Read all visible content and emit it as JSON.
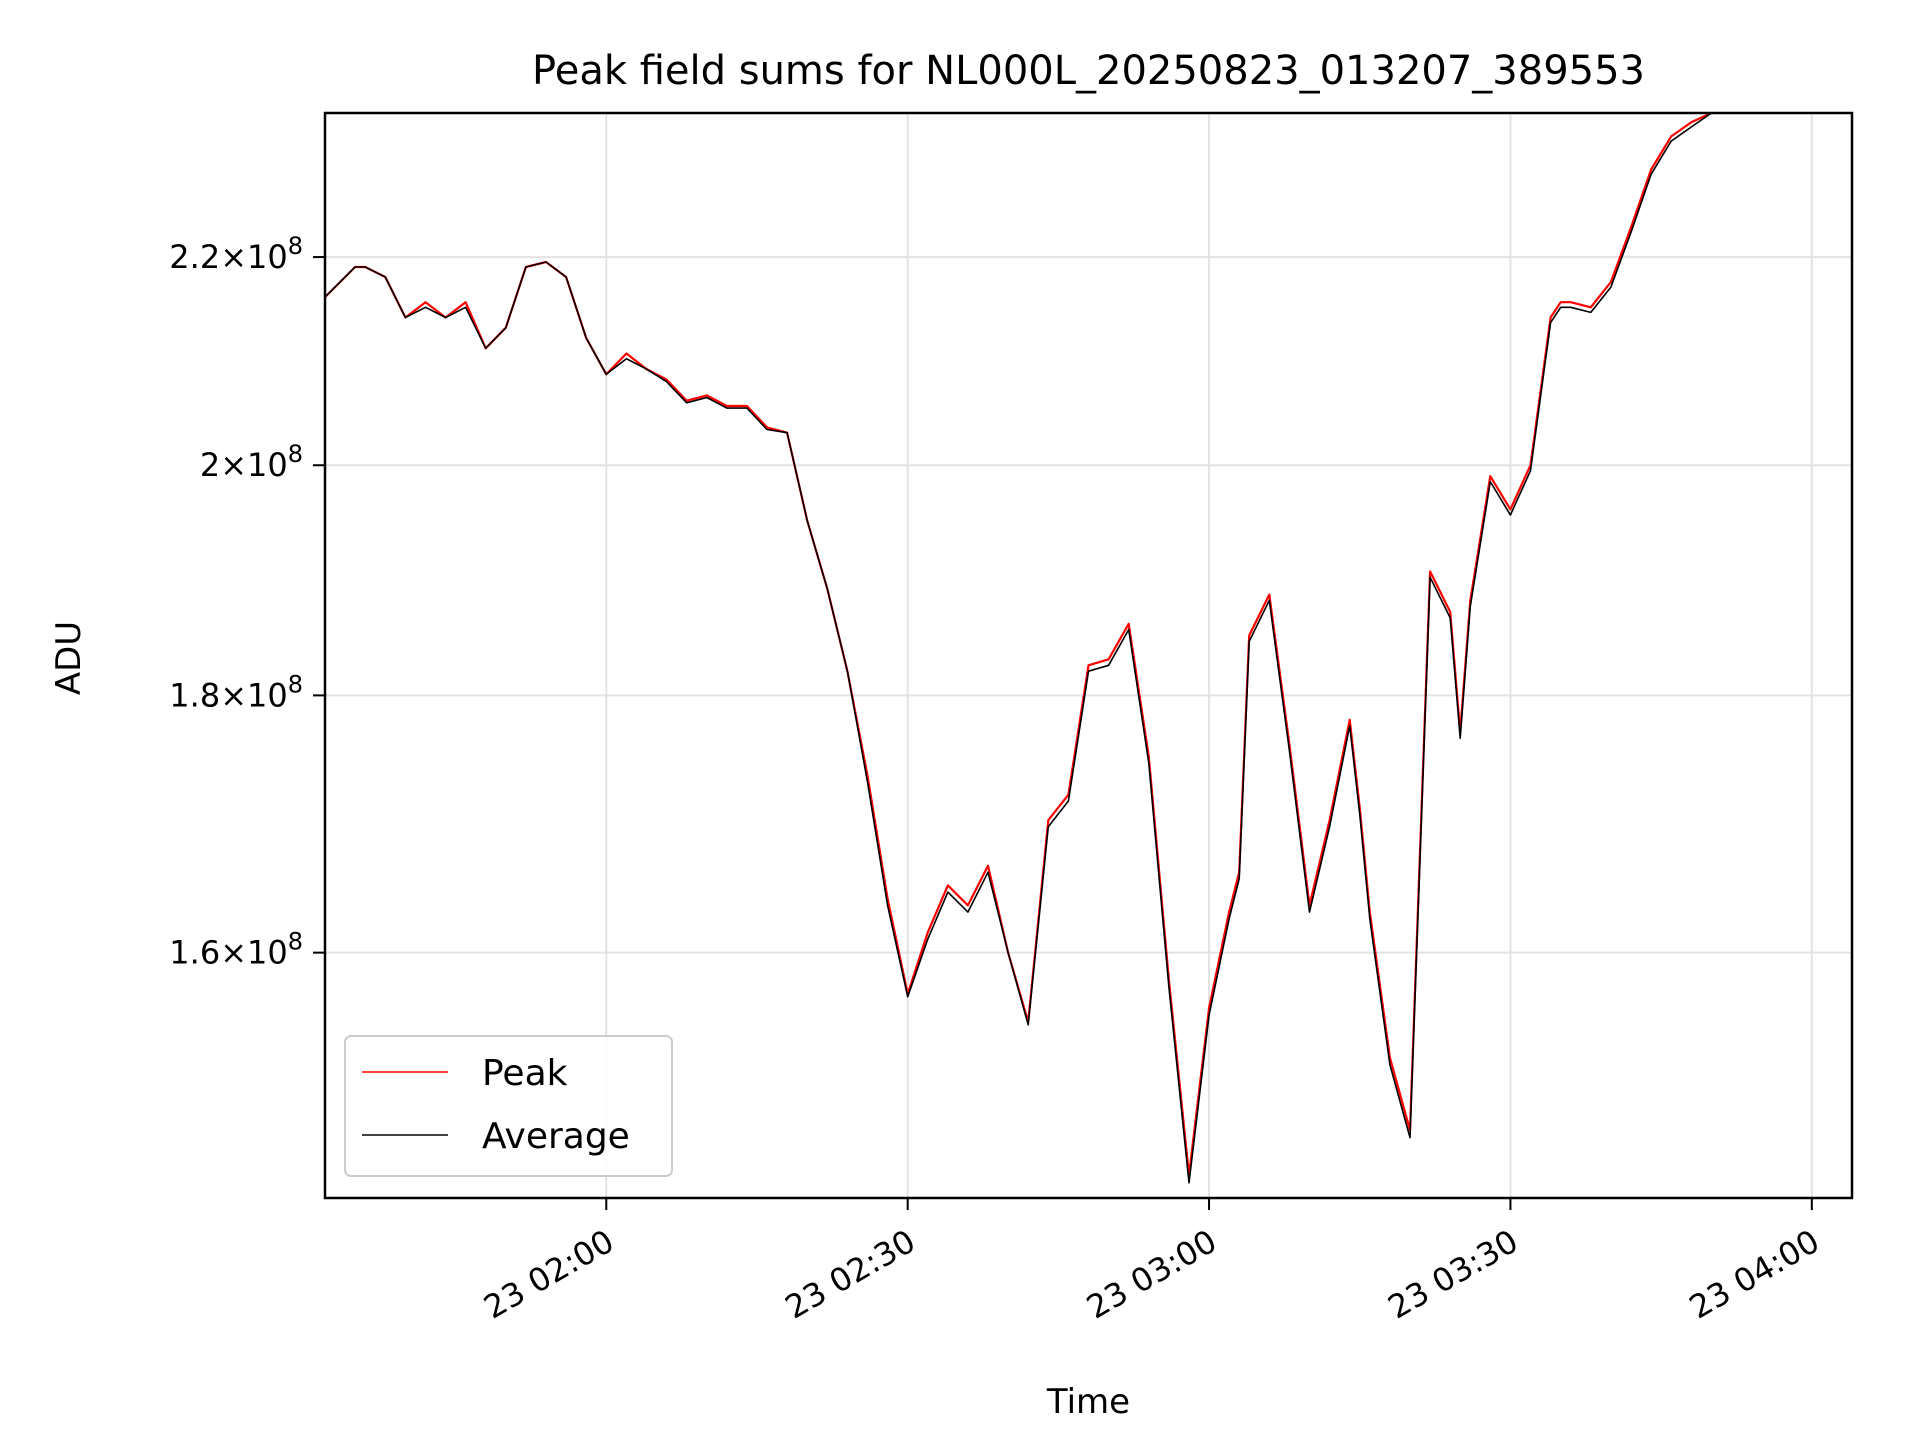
{
  "chart_data": {
    "type": "line",
    "title": "Peak field sums for NL000L_20250823_013207_389553",
    "xlabel": "Time",
    "ylabel": "ADU",
    "scale": {
      "y": "log"
    },
    "grid": true,
    "legend_position": "lower-left",
    "xlim": [
      "2025-08-23 01:32:00",
      "2025-08-23 04:04:00"
    ],
    "ylim": [
      143000000,
      235000000
    ],
    "x_ticks": [
      {
        "value": "2025-08-23 02:00",
        "label": "23 02:00"
      },
      {
        "value": "2025-08-23 02:30",
        "label": "23 02:30"
      },
      {
        "value": "2025-08-23 03:00",
        "label": "23 03:00"
      },
      {
        "value": "2025-08-23 03:30",
        "label": "23 03:30"
      },
      {
        "value": "2025-08-23 04:00",
        "label": "23 04:00"
      }
    ],
    "y_ticks": [
      {
        "value": 160000000,
        "mantissa": "1.6",
        "base": "10",
        "exp": "8"
      },
      {
        "value": 180000000,
        "mantissa": "1.8",
        "base": "10",
        "exp": "8"
      },
      {
        "value": 200000000,
        "mantissa": "2",
        "base": "10",
        "exp": "8"
      },
      {
        "value": 220000000,
        "mantissa": "2.2",
        "base": "10",
        "exp": "8"
      }
    ],
    "x": [
      "01:32",
      "01:35",
      "01:36",
      "01:38",
      "01:40",
      "01:42",
      "01:44",
      "01:46",
      "01:48",
      "01:50",
      "01:52",
      "01:54",
      "01:56",
      "01:58",
      "02:00",
      "02:02",
      "02:04",
      "02:06",
      "02:08",
      "02:10",
      "02:12",
      "02:14",
      "02:16",
      "02:18",
      "02:20",
      "02:22",
      "02:24",
      "02:26",
      "02:28",
      "02:30",
      "02:32",
      "02:34",
      "02:36",
      "02:38",
      "02:40",
      "02:42",
      "02:44",
      "02:46",
      "02:48",
      "02:50",
      "02:52",
      "02:54",
      "02:56",
      "02:58",
      "03:00",
      "03:02",
      "03:03",
      "03:04",
      "03:06",
      "03:08",
      "03:10",
      "03:12",
      "03:14",
      "03:15",
      "03:16",
      "03:18",
      "03:20",
      "03:22",
      "03:24",
      "03:25",
      "03:26",
      "03:28",
      "03:30",
      "03:32",
      "03:34",
      "03:35",
      "03:36",
      "03:38",
      "03:40",
      "03:42",
      "03:44",
      "03:46",
      "03:48",
      "03:50"
    ],
    "series": [
      {
        "name": "Peak",
        "color": "#ff0000",
        "values": [
          216000000,
          219000000,
          219000000,
          218000000,
          214000000,
          215500000,
          214000000,
          215500000,
          211000000,
          213000000,
          219000000,
          219500000,
          218000000,
          212000000,
          208500000,
          210500000,
          209000000,
          208000000,
          206000000,
          206500000,
          205500000,
          205500000,
          203500000,
          203000000,
          195000000,
          189000000,
          182000000,
          173500000,
          164000000,
          157000000,
          161500000,
          165000000,
          163500000,
          166500000,
          160000000,
          155000000,
          170000000,
          172000000,
          182500000,
          183000000,
          186000000,
          175000000,
          158000000,
          144500000,
          156000000,
          163000000,
          166000000,
          185000000,
          188500000,
          176000000,
          163500000,
          170000000,
          178000000,
          171000000,
          163000000,
          152500000,
          147500000,
          190500000,
          187000000,
          177000000,
          188000000,
          199000000,
          196000000,
          200000000,
          214000000,
          215500000,
          215500000,
          215000000,
          217500000,
          223000000,
          229000000,
          232500000,
          234000000,
          235000000
        ]
      },
      {
        "name": "Average",
        "color": "#000000",
        "values": [
          216000000,
          219000000,
          219000000,
          218000000,
          214000000,
          215000000,
          214000000,
          215000000,
          211000000,
          213000000,
          219000000,
          219500000,
          218000000,
          212000000,
          208500000,
          210000000,
          209000000,
          207800000,
          205800000,
          206300000,
          205300000,
          205300000,
          203300000,
          203000000,
          195000000,
          189000000,
          182000000,
          173000000,
          163500000,
          156800000,
          161000000,
          164500000,
          163000000,
          166000000,
          160000000,
          154800000,
          169500000,
          171500000,
          182000000,
          182500000,
          185500000,
          174500000,
          157500000,
          144000000,
          155500000,
          162500000,
          165500000,
          184500000,
          188000000,
          175500000,
          163000000,
          169500000,
          177500000,
          170500000,
          162500000,
          152000000,
          147000000,
          190000000,
          186500000,
          176500000,
          187500000,
          198500000,
          195500000,
          199500000,
          213500000,
          215000000,
          215000000,
          214500000,
          217000000,
          222500000,
          228500000,
          232000000,
          233500000,
          235000000
        ]
      }
    ]
  }
}
